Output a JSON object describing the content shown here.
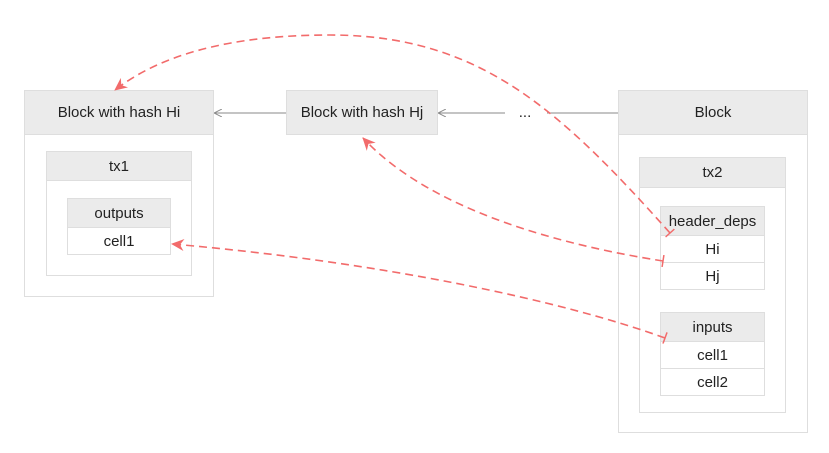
{
  "blocks": {
    "hi": {
      "title": "Block with hash Hi"
    },
    "hj": {
      "title": "Block with hash Hj"
    },
    "ellipsis": "...",
    "current": {
      "title": "Block"
    }
  },
  "tx1": {
    "title": "tx1",
    "outputs": {
      "title": "outputs",
      "cells": [
        "cell1"
      ]
    }
  },
  "tx2": {
    "title": "tx2",
    "header_deps": {
      "title": "header_deps",
      "cells": [
        "Hi",
        "Hj"
      ]
    },
    "inputs": {
      "title": "inputs",
      "cells": [
        "cell1",
        "cell2"
      ]
    }
  },
  "colors": {
    "dashed_arrow": "#f26b6b",
    "solid_arrow": "#8a8a8a",
    "header_fill": "#ebebeb",
    "border": "#dedede"
  }
}
